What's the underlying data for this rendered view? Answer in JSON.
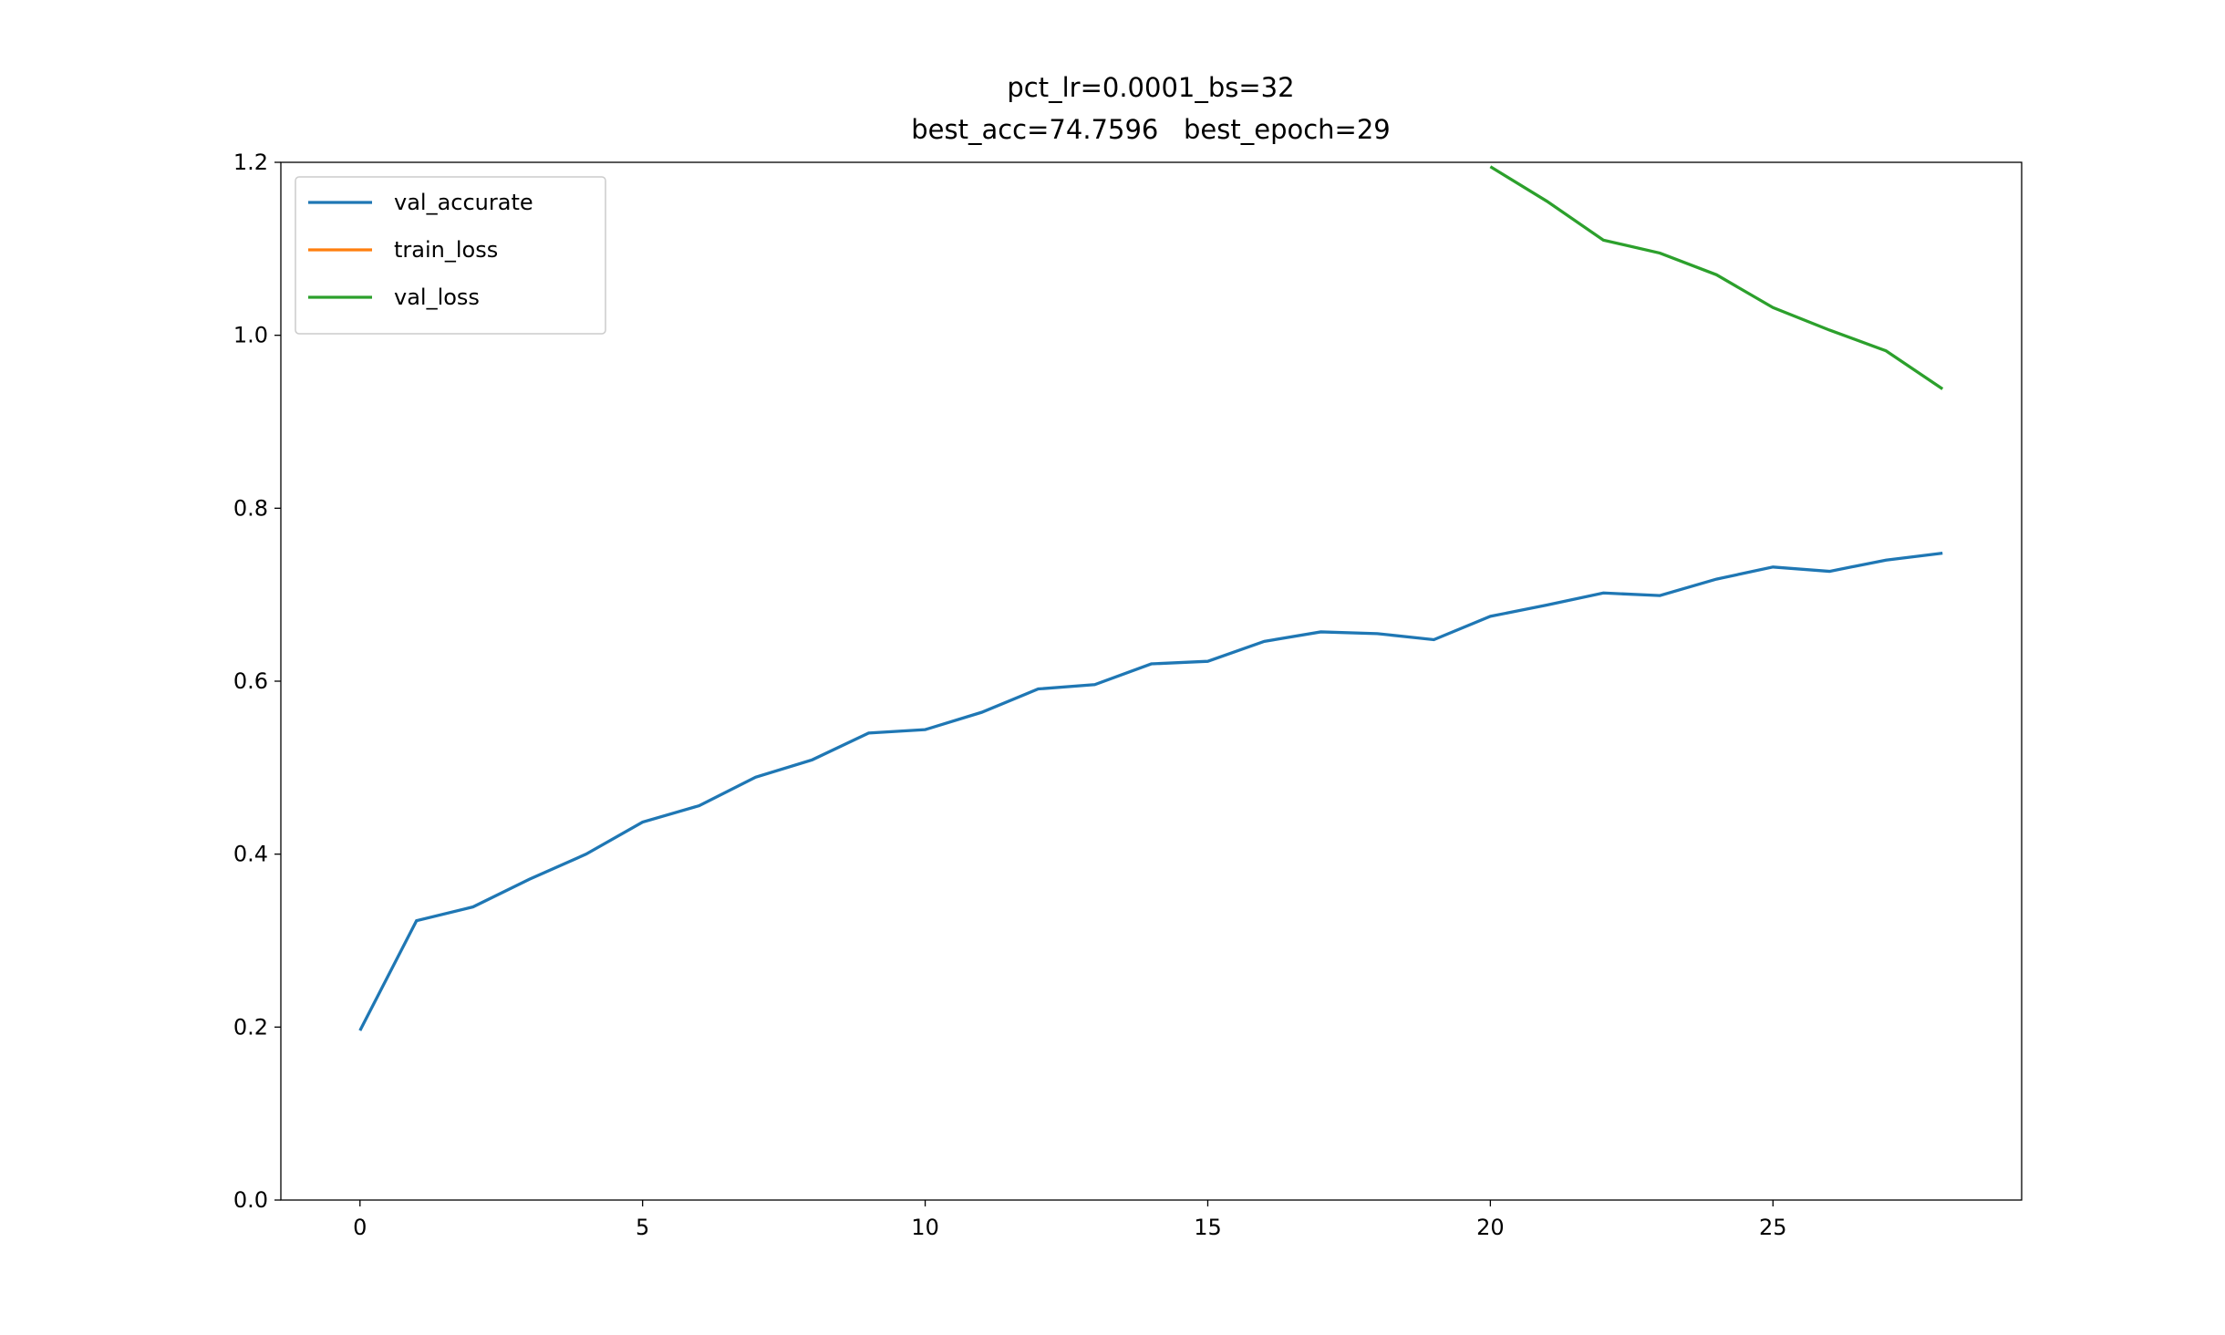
{
  "chart_data": {
    "type": "line",
    "title": "pct_lr=0.0001_bs=32",
    "subtitle": "best_acc=74.7596   best_epoch=29",
    "x": [
      0,
      1,
      2,
      3,
      4,
      5,
      6,
      7,
      8,
      9,
      10,
      11,
      12,
      13,
      14,
      15,
      16,
      17,
      18,
      19,
      20,
      21,
      22,
      23,
      24,
      25,
      26,
      27,
      28
    ],
    "series": [
      {
        "name": "val_accurate",
        "color": "#1f77b4",
        "values": [
          0.196,
          0.323,
          0.339,
          0.371,
          0.4,
          0.437,
          0.456,
          0.489,
          0.509,
          0.54,
          0.544,
          0.564,
          0.591,
          0.596,
          0.62,
          0.623,
          0.646,
          0.657,
          0.655,
          0.648,
          0.675,
          0.688,
          0.702,
          0.699,
          0.718,
          0.732,
          0.727,
          0.74,
          0.748
        ]
      },
      {
        "name": "train_loss",
        "color": "#ff7f0e",
        "values": [
          null,
          null,
          null,
          null,
          null,
          null,
          null,
          null,
          null,
          null,
          null,
          null,
          null,
          null,
          null,
          null,
          null,
          null,
          null,
          null,
          null,
          null,
          null,
          null,
          null,
          null,
          null,
          null,
          null
        ]
      },
      {
        "name": "val_loss",
        "color": "#2ca02c",
        "values": [
          null,
          null,
          null,
          null,
          null,
          null,
          null,
          null,
          null,
          null,
          null,
          null,
          null,
          null,
          null,
          null,
          null,
          null,
          null,
          null,
          1.195,
          1.155,
          1.11,
          1.095,
          1.07,
          1.032,
          1.006,
          0.982,
          0.938
        ]
      }
    ],
    "xlim": [
      -1.4,
      29.4
    ],
    "xticks": [
      0,
      5,
      10,
      15,
      20,
      25
    ],
    "ylim": [
      0,
      1.2
    ],
    "yticks": [
      {
        "value": 0,
        "label": "0.0"
      },
      {
        "value": 0.2,
        "label": "0.2"
      },
      {
        "value": 0.4,
        "label": "0.4"
      },
      {
        "value": 0.6,
        "label": "0.6"
      },
      {
        "value": 0.8,
        "label": "0.8"
      },
      {
        "value": 1.0,
        "label": "1.0"
      },
      {
        "value": 1.2,
        "label": "1.2"
      }
    ],
    "legend": "upper left",
    "grid": false
  }
}
